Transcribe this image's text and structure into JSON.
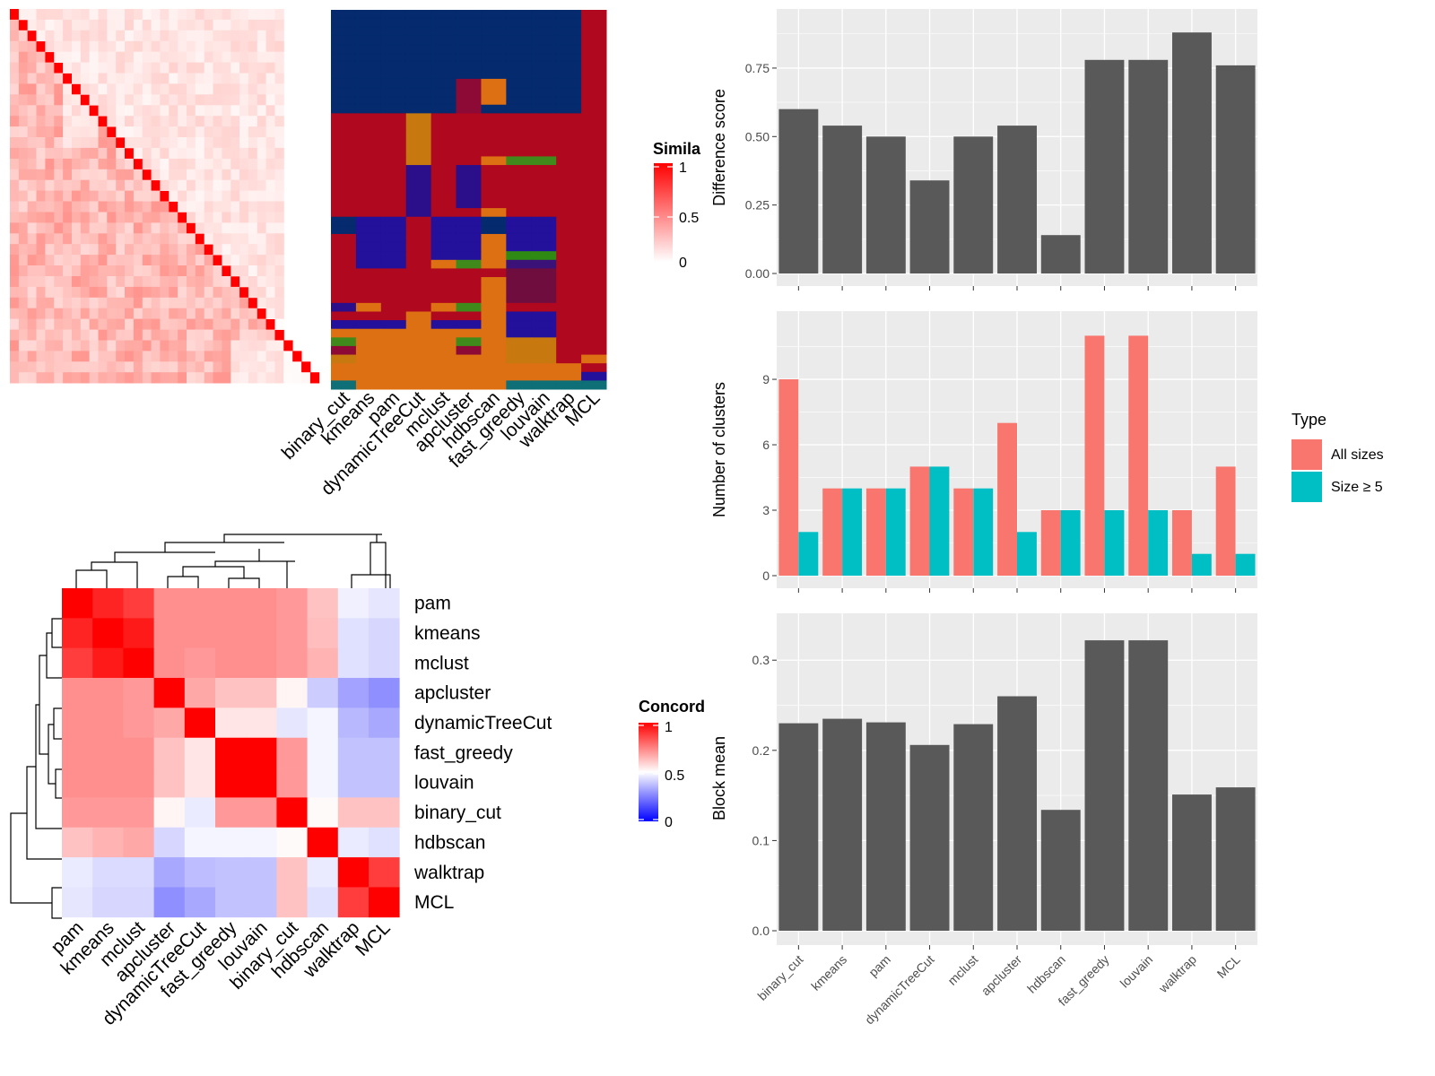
{
  "colors": {
    "panel_bg": "#ebebeb",
    "grid": "#ffffff",
    "bar": "#595959",
    "all_sizes": "#f8766d",
    "size_ge5": "#00bfc4",
    "heat_high": "#ff0000",
    "heat_mid": "#ffffff",
    "heat_low": "#0000ff"
  },
  "cell_colors": {
    "navy": "#052a6e",
    "red": "#b0081e",
    "orange": "#dc7013",
    "ochre": "#c7780f",
    "indigo": "#2b0f8a",
    "violet": "#23109b",
    "green": "#3f8a1a",
    "bright_green": "#2e8a12",
    "maroon": "#8c0a35",
    "teal": "#0e6f77",
    "purple": "#3a1278",
    "plum": "#700d3f"
  },
  "heatmap1": {
    "legend_title": "Simila",
    "legend_ticks": [
      "1",
      "0.5",
      "0"
    ]
  },
  "cluster_panel": {
    "methods": [
      "binary_cut",
      "kmeans",
      "pam",
      "dynamicTreeCut",
      "mclust",
      "apcluster",
      "hdbscan",
      "fast_greedy",
      "louvain",
      "walktrap",
      "MCL"
    ],
    "rows": [
      [
        "navy",
        "navy",
        "navy",
        "navy",
        "navy",
        "navy",
        "navy",
        "navy",
        "navy",
        "navy",
        "red"
      ],
      [
        "navy",
        "navy",
        "navy",
        "navy",
        "navy",
        "navy",
        "navy",
        "navy",
        "navy",
        "navy",
        "red"
      ],
      [
        "navy",
        "navy",
        "navy",
        "navy",
        "navy",
        "navy",
        "navy",
        "navy",
        "navy",
        "navy",
        "red"
      ],
      [
        "navy",
        "navy",
        "navy",
        "navy",
        "navy",
        "navy",
        "navy",
        "navy",
        "navy",
        "navy",
        "red"
      ],
      [
        "navy",
        "navy",
        "navy",
        "navy",
        "navy",
        "navy",
        "navy",
        "navy",
        "navy",
        "navy",
        "red"
      ],
      [
        "navy",
        "navy",
        "navy",
        "navy",
        "navy",
        "navy",
        "navy",
        "navy",
        "navy",
        "navy",
        "red"
      ],
      [
        "navy",
        "navy",
        "navy",
        "navy",
        "navy",
        "navy",
        "navy",
        "navy",
        "navy",
        "navy",
        "red"
      ],
      [
        "navy",
        "navy",
        "navy",
        "navy",
        "navy",
        "navy",
        "navy",
        "navy",
        "navy",
        "navy",
        "red"
      ],
      [
        "navy",
        "navy",
        "navy",
        "navy",
        "navy",
        "maroon",
        "orange",
        "navy",
        "navy",
        "navy",
        "red"
      ],
      [
        "navy",
        "navy",
        "navy",
        "navy",
        "navy",
        "maroon",
        "orange",
        "navy",
        "navy",
        "navy",
        "red"
      ],
      [
        "navy",
        "navy",
        "navy",
        "navy",
        "navy",
        "maroon",
        "orange",
        "navy",
        "navy",
        "navy",
        "red"
      ],
      [
        "navy",
        "navy",
        "navy",
        "navy",
        "navy",
        "maroon",
        "navy",
        "navy",
        "navy",
        "navy",
        "red"
      ],
      [
        "red",
        "red",
        "red",
        "ochre",
        "red",
        "red",
        "red",
        "red",
        "red",
        "red",
        "red"
      ],
      [
        "red",
        "red",
        "red",
        "ochre",
        "red",
        "red",
        "red",
        "red",
        "red",
        "red",
        "red"
      ],
      [
        "red",
        "red",
        "red",
        "ochre",
        "red",
        "red",
        "red",
        "red",
        "red",
        "red",
        "red"
      ],
      [
        "red",
        "red",
        "red",
        "ochre",
        "red",
        "red",
        "red",
        "red",
        "red",
        "red",
        "red"
      ],
      [
        "red",
        "red",
        "red",
        "ochre",
        "red",
        "red",
        "red",
        "red",
        "red",
        "red",
        "red"
      ],
      [
        "red",
        "red",
        "red",
        "ochre",
        "red",
        "red",
        "orange",
        "green",
        "green",
        "red",
        "red"
      ],
      [
        "red",
        "red",
        "red",
        "indigo",
        "red",
        "indigo",
        "red",
        "red",
        "red",
        "red",
        "red"
      ],
      [
        "red",
        "red",
        "red",
        "indigo",
        "red",
        "indigo",
        "red",
        "red",
        "red",
        "red",
        "red"
      ],
      [
        "red",
        "red",
        "red",
        "indigo",
        "red",
        "indigo",
        "red",
        "red",
        "red",
        "red",
        "red"
      ],
      [
        "red",
        "red",
        "red",
        "indigo",
        "red",
        "indigo",
        "red",
        "red",
        "red",
        "red",
        "red"
      ],
      [
        "red",
        "red",
        "red",
        "indigo",
        "red",
        "indigo",
        "red",
        "red",
        "red",
        "red",
        "red"
      ],
      [
        "red",
        "red",
        "red",
        "indigo",
        "red",
        "red",
        "orange",
        "red",
        "red",
        "red",
        "red"
      ],
      [
        "navy",
        "violet",
        "violet",
        "red",
        "violet",
        "violet",
        "navy",
        "violet",
        "violet",
        "red",
        "red"
      ],
      [
        "navy",
        "violet",
        "violet",
        "red",
        "violet",
        "violet",
        "navy",
        "violet",
        "violet",
        "red",
        "red"
      ],
      [
        "red",
        "violet",
        "violet",
        "red",
        "violet",
        "violet",
        "orange",
        "violet",
        "violet",
        "red",
        "red"
      ],
      [
        "red",
        "violet",
        "violet",
        "red",
        "violet",
        "violet",
        "orange",
        "violet",
        "violet",
        "red",
        "red"
      ],
      [
        "red",
        "violet",
        "violet",
        "red",
        "violet",
        "violet",
        "orange",
        "bright_green",
        "bright_green",
        "red",
        "red"
      ],
      [
        "red",
        "violet",
        "violet",
        "red",
        "orange",
        "green",
        "orange",
        "purple",
        "purple",
        "red",
        "red"
      ],
      [
        "red",
        "red",
        "red",
        "red",
        "red",
        "red",
        "red",
        "plum",
        "plum",
        "red",
        "red"
      ],
      [
        "red",
        "red",
        "red",
        "red",
        "red",
        "red",
        "orange",
        "plum",
        "plum",
        "red",
        "red"
      ],
      [
        "red",
        "red",
        "red",
        "red",
        "red",
        "red",
        "orange",
        "plum",
        "plum",
        "red",
        "red"
      ],
      [
        "red",
        "red",
        "red",
        "red",
        "red",
        "red",
        "orange",
        "plum",
        "plum",
        "red",
        "red"
      ],
      [
        "indigo",
        "orange",
        "red",
        "red",
        "orange",
        "green",
        "orange",
        "red",
        "red",
        "red",
        "red"
      ],
      [
        "red",
        "red",
        "red",
        "orange",
        "red",
        "red",
        "orange",
        "violet",
        "violet",
        "red",
        "red"
      ],
      [
        "violet",
        "violet",
        "violet",
        "orange",
        "violet",
        "violet",
        "orange",
        "violet",
        "violet",
        "red",
        "red"
      ],
      [
        "orange",
        "orange",
        "orange",
        "orange",
        "orange",
        "orange",
        "orange",
        "violet",
        "violet",
        "red",
        "red"
      ],
      [
        "green",
        "orange",
        "orange",
        "orange",
        "orange",
        "green",
        "orange",
        "ochre",
        "ochre",
        "red",
        "red"
      ],
      [
        "maroon",
        "orange",
        "orange",
        "orange",
        "orange",
        "maroon",
        "orange",
        "ochre",
        "ochre",
        "red",
        "red"
      ],
      [
        "ochre",
        "orange",
        "orange",
        "orange",
        "orange",
        "orange",
        "orange",
        "ochre",
        "ochre",
        "red",
        "orange"
      ],
      [
        "orange",
        "orange",
        "orange",
        "orange",
        "orange",
        "orange",
        "orange",
        "orange",
        "orange",
        "orange",
        "red"
      ],
      [
        "orange",
        "orange",
        "orange",
        "orange",
        "orange",
        "orange",
        "orange",
        "orange",
        "orange",
        "orange",
        "violet"
      ],
      [
        "teal",
        "orange",
        "orange",
        "orange",
        "orange",
        "orange",
        "orange",
        "teal",
        "teal",
        "teal",
        "teal"
      ]
    ]
  },
  "concordance": {
    "legend_title": "Concord",
    "legend_ticks": [
      "1",
      "0.5",
      "0"
    ],
    "labels": [
      "pam",
      "kmeans",
      "mclust",
      "apcluster",
      "dynamicTreeCut",
      "fast_greedy",
      "louvain",
      "binary_cut",
      "hdbscan",
      "walktrap",
      "MCL"
    ],
    "matrix": [
      [
        1.0,
        0.93,
        0.88,
        0.72,
        0.72,
        0.72,
        0.72,
        0.7,
        0.62,
        0.47,
        0.45
      ],
      [
        0.93,
        1.0,
        0.95,
        0.72,
        0.72,
        0.72,
        0.72,
        0.7,
        0.63,
        0.44,
        0.42
      ],
      [
        0.88,
        0.95,
        1.0,
        0.72,
        0.7,
        0.72,
        0.72,
        0.7,
        0.65,
        0.44,
        0.42
      ],
      [
        0.72,
        0.72,
        0.7,
        1.0,
        0.67,
        0.62,
        0.62,
        0.52,
        0.4,
        0.32,
        0.28
      ],
      [
        0.72,
        0.72,
        0.7,
        0.67,
        1.0,
        0.55,
        0.55,
        0.45,
        0.48,
        0.36,
        0.33
      ],
      [
        0.72,
        0.72,
        0.72,
        0.62,
        0.55,
        1.0,
        1.0,
        0.7,
        0.48,
        0.38,
        0.38
      ],
      [
        0.72,
        0.72,
        0.72,
        0.62,
        0.55,
        1.0,
        1.0,
        0.7,
        0.48,
        0.38,
        0.38
      ],
      [
        0.7,
        0.7,
        0.7,
        0.52,
        0.46,
        0.7,
        0.7,
        1.0,
        0.51,
        0.62,
        0.62
      ],
      [
        0.62,
        0.65,
        0.67,
        0.42,
        0.48,
        0.48,
        0.48,
        0.51,
        1.0,
        0.46,
        0.44
      ],
      [
        0.46,
        0.43,
        0.43,
        0.33,
        0.37,
        0.38,
        0.38,
        0.62,
        0.46,
        1.0,
        0.88
      ],
      [
        0.45,
        0.42,
        0.42,
        0.28,
        0.33,
        0.38,
        0.38,
        0.62,
        0.44,
        0.88,
        1.0
      ]
    ]
  },
  "chart_data": [
    {
      "type": "bar",
      "categories": [
        "binary_cut",
        "kmeans",
        "pam",
        "dynamicTreeCut",
        "mclust",
        "apcluster",
        "hdbscan",
        "fast_greedy",
        "louvain",
        "walktrap",
        "MCL"
      ],
      "values": [
        0.6,
        0.54,
        0.5,
        0.34,
        0.5,
        0.54,
        0.14,
        0.78,
        0.78,
        0.88,
        0.76
      ],
      "ylabel": "Difference score",
      "ylim": [
        0,
        0.92
      ],
      "yticks": [
        0,
        0.25,
        0.5,
        0.75
      ],
      "ytick_labels": [
        "0.00",
        "0.25",
        "0.50",
        "0.75"
      ]
    },
    {
      "type": "bar",
      "categories": [
        "binary_cut",
        "kmeans",
        "pam",
        "dynamicTreeCut",
        "mclust",
        "apcluster",
        "hdbscan",
        "fast_greedy",
        "louvain",
        "walktrap",
        "MCL"
      ],
      "series": [
        {
          "name": "All sizes",
          "values": [
            9,
            4,
            4,
            5,
            4,
            7,
            3,
            11,
            11,
            3,
            5
          ]
        },
        {
          "name": "Size ≥ 5",
          "values": [
            2,
            4,
            4,
            5,
            4,
            2,
            3,
            3,
            3,
            1,
            1
          ]
        }
      ],
      "ylabel": "Number of clusters",
      "ylim": [
        0,
        11.55
      ],
      "yticks": [
        0,
        3,
        6,
        9
      ],
      "ytick_labels": [
        "0",
        "3",
        "6",
        "9"
      ],
      "legend": {
        "title": "Type",
        "position": "right"
      }
    },
    {
      "type": "bar",
      "categories": [
        "binary_cut",
        "kmeans",
        "pam",
        "dynamicTreeCut",
        "mclust",
        "apcluster",
        "hdbscan",
        "fast_greedy",
        "louvain",
        "walktrap",
        "MCL"
      ],
      "values": [
        0.23,
        0.235,
        0.231,
        0.206,
        0.229,
        0.26,
        0.134,
        0.322,
        0.322,
        0.151,
        0.159
      ],
      "ylabel": "Block mean",
      "ylim": [
        0,
        0.338
      ],
      "yticks": [
        0,
        0.1,
        0.2,
        0.3
      ],
      "ytick_labels": [
        "0.0",
        "0.1",
        "0.2",
        "0.3"
      ]
    }
  ]
}
